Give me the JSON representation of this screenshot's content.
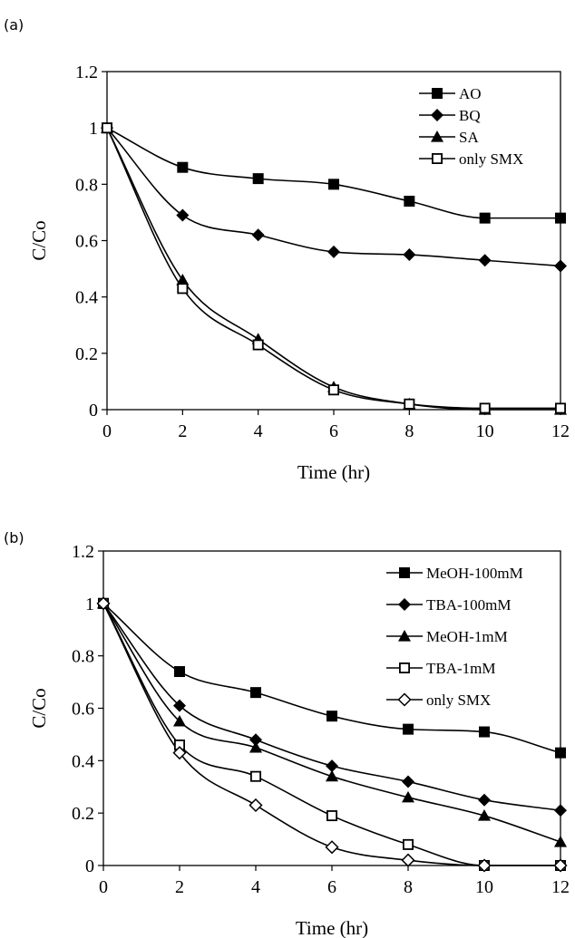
{
  "chart_data": [
    {
      "panel": "(a)",
      "type": "line",
      "xlabel": "Time (hr)",
      "ylabel": "C/Co",
      "xlim": [
        0,
        12
      ],
      "ylim": [
        0,
        1.2
      ],
      "x_ticks": [
        "0",
        "2",
        "4",
        "6",
        "8",
        "10",
        "12"
      ],
      "y_ticks": [
        "0",
        "0.2",
        "0.4",
        "0.6",
        "0.8",
        "1",
        "1.2"
      ],
      "grid": false,
      "legend_position": "top-right",
      "series": [
        {
          "name": "AO",
          "marker": "square-filled",
          "x": [
            0,
            2,
            4,
            6,
            8,
            10,
            12
          ],
          "y": [
            1.0,
            0.86,
            0.82,
            0.8,
            0.74,
            0.68,
            0.68
          ]
        },
        {
          "name": "BQ",
          "marker": "diamond-filled",
          "x": [
            0,
            2,
            4,
            6,
            8,
            10,
            12
          ],
          "y": [
            1.0,
            0.69,
            0.62,
            0.56,
            0.55,
            0.53,
            0.51
          ]
        },
        {
          "name": "SA",
          "marker": "triangle-filled",
          "x": [
            0,
            2,
            4,
            6,
            8,
            10,
            12
          ],
          "y": [
            1.0,
            0.46,
            0.25,
            0.08,
            0.02,
            0.0,
            0.0
          ]
        },
        {
          "name": "only SMX",
          "marker": "square-open",
          "x": [
            0,
            2,
            4,
            6,
            8,
            10,
            12
          ],
          "y": [
            1.0,
            0.43,
            0.23,
            0.07,
            0.02,
            0.005,
            0.005
          ]
        }
      ]
    },
    {
      "panel": "(b)",
      "type": "line",
      "xlabel": "Time (hr)",
      "ylabel": "C/Co",
      "xlim": [
        0,
        12
      ],
      "ylim": [
        0,
        1.2
      ],
      "x_ticks": [
        "0",
        "2",
        "4",
        "6",
        "8",
        "10",
        "12"
      ],
      "y_ticks": [
        "0",
        "0.2",
        "0.4",
        "0.6",
        "0.8",
        "1",
        "1.2"
      ],
      "grid": false,
      "legend_position": "top-right",
      "series": [
        {
          "name": "MeOH-100mM",
          "marker": "square-filled",
          "x": [
            0,
            2,
            4,
            6,
            8,
            10,
            12
          ],
          "y": [
            1.0,
            0.74,
            0.66,
            0.57,
            0.52,
            0.51,
            0.43
          ]
        },
        {
          "name": "TBA-100mM",
          "marker": "diamond-filled",
          "x": [
            0,
            2,
            4,
            6,
            8,
            10,
            12
          ],
          "y": [
            1.0,
            0.61,
            0.48,
            0.38,
            0.32,
            0.25,
            0.21
          ]
        },
        {
          "name": "MeOH-1mM",
          "marker": "triangle-filled",
          "x": [
            0,
            2,
            4,
            6,
            8,
            10,
            12
          ],
          "y": [
            1.0,
            0.55,
            0.45,
            0.34,
            0.26,
            0.19,
            0.09
          ]
        },
        {
          "name": "TBA-1mM",
          "marker": "square-open",
          "x": [
            0,
            2,
            4,
            6,
            8,
            10,
            12
          ],
          "y": [
            1.0,
            0.46,
            0.34,
            0.19,
            0.08,
            0.0,
            0.0
          ]
        },
        {
          "name": "only SMX",
          "marker": "diamond-open",
          "x": [
            0,
            2,
            4,
            6,
            8,
            10,
            12
          ],
          "y": [
            1.0,
            0.43,
            0.23,
            0.07,
            0.02,
            0.0,
            0.0
          ]
        }
      ]
    }
  ]
}
